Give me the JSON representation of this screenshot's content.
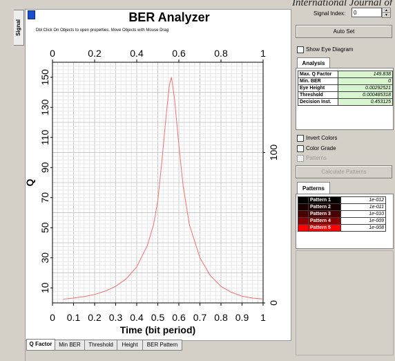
{
  "caption": "International Journal of",
  "left_tab": "Signal",
  "title": "BER Analyzer",
  "hint": "Dbl Click On Objects to open properties.  Move Objects with Mouse Drag",
  "bottom_tabs": [
    "Q Factor",
    "Min BER",
    "Threshold",
    "Height",
    "BER Pattern"
  ],
  "signal_index": {
    "label": "Signal Index:",
    "value": "0"
  },
  "auto_set": "Auto Set",
  "show_eye": "Show Eye Diagram",
  "analysis_tab": "Analysis",
  "analysis": [
    {
      "key": "Max. Q Factor",
      "value": "149.838"
    },
    {
      "key": "Min. BER",
      "value": "0"
    },
    {
      "key": "Eye Height",
      "value": "0.00292521"
    },
    {
      "key": "Threshold",
      "value": "0.000485318"
    },
    {
      "key": "Decision Inst.",
      "value": "0.453125"
    }
  ],
  "options": {
    "invert": "Invert Colors",
    "grade": "Color Grade",
    "patterns": "Patterns"
  },
  "calc_button": "Calculate Patterns",
  "patterns_tab": "Patterns",
  "patterns": [
    {
      "name": "Pattern 1",
      "value": "1e-012",
      "color": "#000000"
    },
    {
      "name": "Pattern 2",
      "value": "1e-011",
      "color": "#1a0000"
    },
    {
      "name": "Pattern 3",
      "value": "1e-010",
      "color": "#4a0000"
    },
    {
      "name": "Pattern 4",
      "value": "1e-009",
      "color": "#8a0000"
    },
    {
      "name": "Pattern 5",
      "value": "1e-008",
      "color": "#ff0000"
    }
  ],
  "chart_data": {
    "type": "line",
    "xlabel": "Time (bit period)",
    "ylabel": "Q",
    "xlim": [
      0,
      1
    ],
    "ylim": [
      0,
      160
    ],
    "x_ticks_bottom": [
      "0",
      "0.1",
      "0.2",
      "0.3",
      "0.4",
      "0.5",
      "0.6",
      "0.7",
      "0.8",
      "0.9",
      "1"
    ],
    "x_ticks_top": [
      "0",
      "0.2",
      "0.4",
      "0.6",
      "0.8",
      "1"
    ],
    "y_ticks": [
      "10",
      "30",
      "50",
      "70",
      "90",
      "110",
      "130",
      "150"
    ],
    "right_ticks": [
      "0",
      "100"
    ],
    "grid": true,
    "line_color": "#f07070",
    "series": [
      {
        "x": [
          0.05,
          0.1,
          0.15,
          0.2,
          0.25,
          0.3,
          0.35,
          0.4,
          0.45,
          0.48,
          0.5,
          0.52,
          0.54,
          0.555,
          0.565,
          0.58,
          0.6,
          0.62,
          0.65,
          0.7,
          0.75,
          0.8,
          0.85,
          0.9,
          0.95,
          1.0
        ],
        "y": [
          2.5,
          3.2,
          4.2,
          5.6,
          7.8,
          11,
          16,
          24,
          38,
          52,
          68,
          95,
          125,
          145,
          150,
          135,
          105,
          78,
          52,
          30,
          18,
          11,
          7,
          4.5,
          3.2,
          2.6
        ]
      }
    ]
  }
}
